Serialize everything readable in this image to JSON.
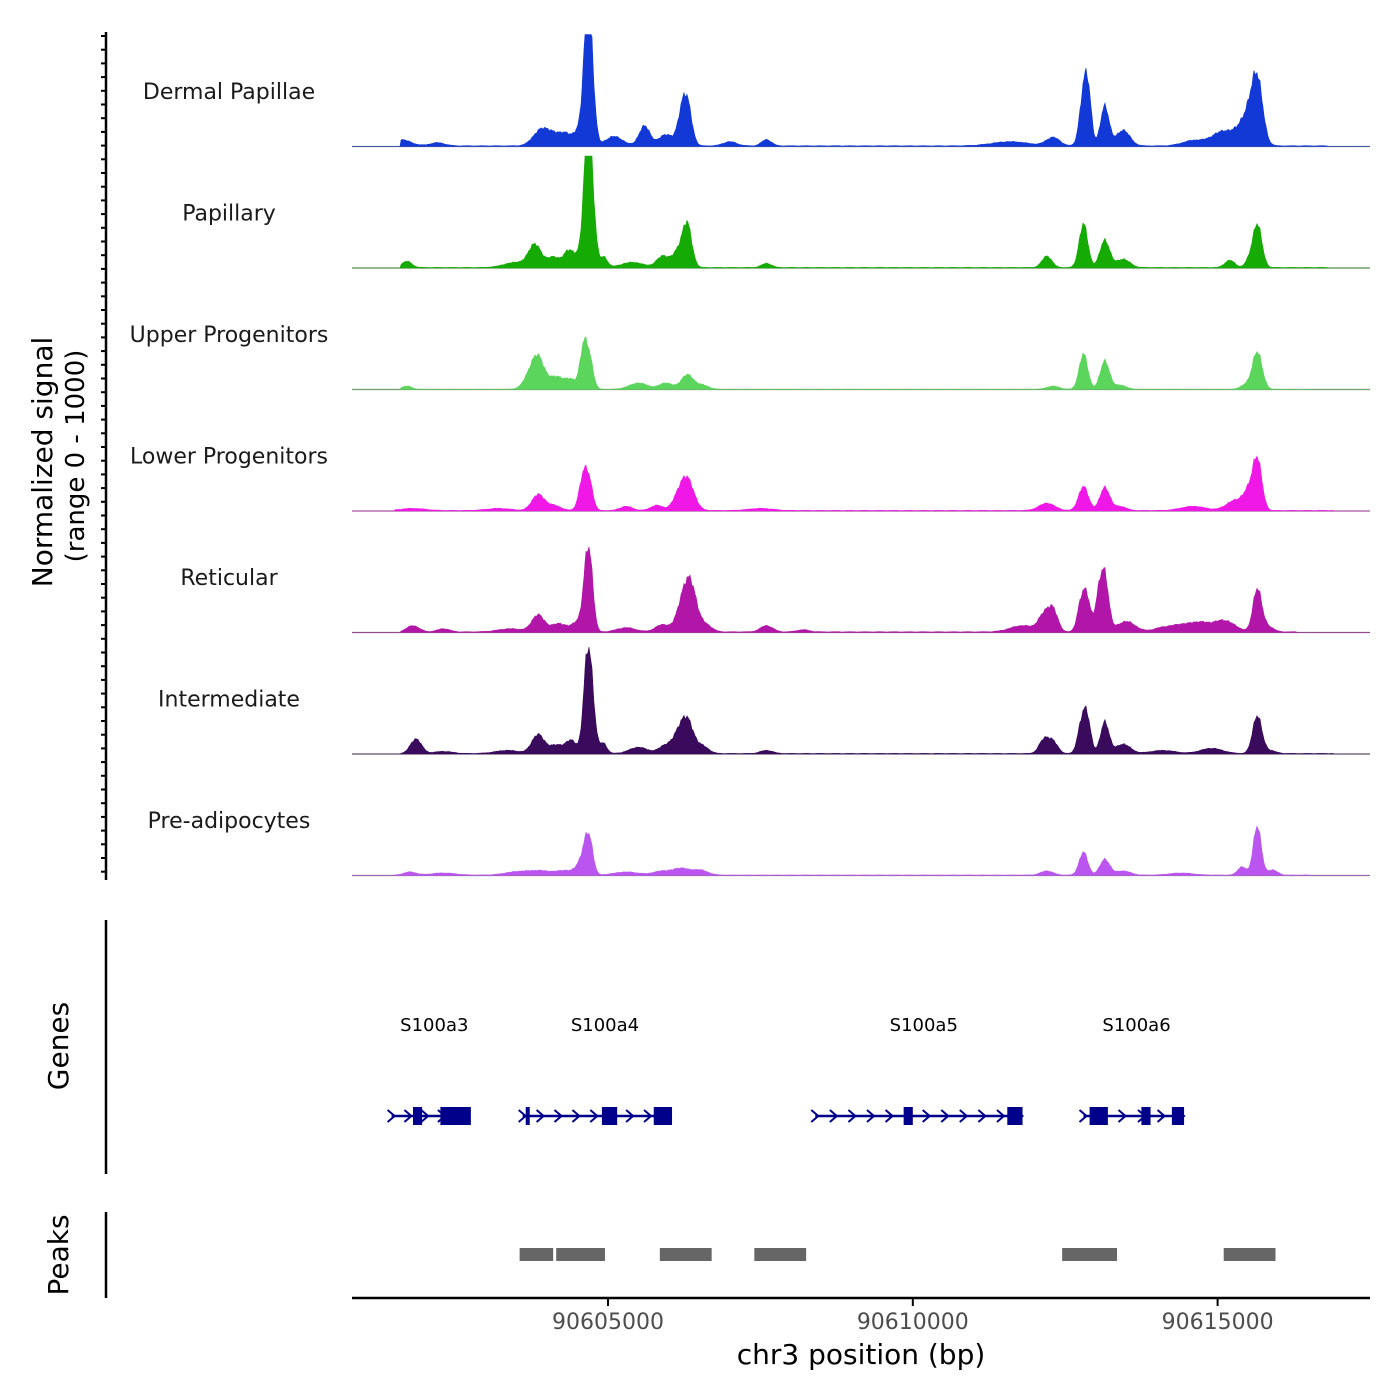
{
  "chart_data": {
    "type": "area",
    "title": "",
    "y_axis_label": "Normalized signal",
    "y_axis_sublabel": "(range 0 - 1000)",
    "ylim": [
      0,
      1000
    ],
    "xlabel": "chr3 position (bp)",
    "xlim": [
      90600800,
      90617500
    ],
    "x_ticks": [
      90605000,
      90610000,
      90615000
    ],
    "x_tick_labels": [
      "90605000",
      "90610000",
      "90615000"
    ],
    "tracks": [
      {
        "name": "Dermal Papillae",
        "color": "#1238d6",
        "peaks": [
          [
            90601600,
            60,
            160
          ],
          [
            90602200,
            30,
            120
          ],
          [
            90603900,
            150,
            130
          ],
          [
            90604100,
            80,
            110
          ],
          [
            90604300,
            110,
            100
          ],
          [
            90604550,
            180,
            90
          ],
          [
            90604650,
            930,
            55
          ],
          [
            90604720,
            720,
            60
          ],
          [
            90605100,
            90,
            140
          ],
          [
            90605600,
            190,
            90
          ],
          [
            90605950,
            110,
            110
          ],
          [
            90606300,
            390,
            75
          ],
          [
            90606200,
            230,
            70
          ],
          [
            90607000,
            40,
            110
          ],
          [
            90607600,
            60,
            80
          ],
          [
            90611600,
            40,
            300
          ],
          [
            90612300,
            80,
            110
          ],
          [
            90612800,
            480,
            65
          ],
          [
            90612880,
            400,
            55
          ],
          [
            90613150,
            380,
            70
          ],
          [
            90613450,
            150,
            110
          ],
          [
            90614600,
            50,
            180
          ],
          [
            90615100,
            140,
            190
          ],
          [
            90615500,
            280,
            140
          ],
          [
            90615650,
            540,
            90
          ]
        ],
        "base": 8,
        "extent": [
          90601600,
          90616800
        ]
      },
      {
        "name": "Papillary",
        "color": "#16aa04",
        "peaks": [
          [
            90601700,
            60,
            80
          ],
          [
            90603500,
            50,
            200
          ],
          [
            90603800,
            210,
            100
          ],
          [
            90604100,
            100,
            110
          ],
          [
            90604350,
            150,
            80
          ],
          [
            90604550,
            140,
            90
          ],
          [
            90604650,
            980,
            55
          ],
          [
            90604730,
            720,
            60
          ],
          [
            90604930,
            100,
            60
          ],
          [
            90605400,
            50,
            180
          ],
          [
            90605900,
            110,
            100
          ],
          [
            90606300,
            400,
            75
          ],
          [
            90606150,
            150,
            90
          ],
          [
            90607600,
            40,
            80
          ],
          [
            90612200,
            110,
            80
          ],
          [
            90612800,
            420,
            70
          ],
          [
            90613150,
            260,
            80
          ],
          [
            90613450,
            80,
            110
          ],
          [
            90615200,
            70,
            80
          ],
          [
            90615500,
            50,
            60
          ],
          [
            90615650,
            420,
            75
          ]
        ],
        "base": 6,
        "extent": [
          90601600,
          90616800
        ]
      },
      {
        "name": "Upper Progenitors",
        "color": "#5bd55b",
        "peaks": [
          [
            90601700,
            30,
            80
          ],
          [
            90603850,
            290,
            100
          ],
          [
            90603700,
            100,
            100
          ],
          [
            90604150,
            120,
            130
          ],
          [
            90604400,
            80,
            90
          ],
          [
            90604600,
            390,
            60
          ],
          [
            90604700,
            260,
            60
          ],
          [
            90605500,
            60,
            150
          ],
          [
            90605950,
            60,
            110
          ],
          [
            90606300,
            140,
            100
          ],
          [
            90606550,
            40,
            100
          ],
          [
            90612300,
            30,
            100
          ],
          [
            90612800,
            340,
            70
          ],
          [
            90613150,
            270,
            75
          ],
          [
            90613400,
            40,
            100
          ],
          [
            90615650,
            360,
            80
          ],
          [
            90615450,
            40,
            80
          ]
        ],
        "base": 3,
        "extent": [
          90601600,
          90616500
        ]
      },
      {
        "name": "Lower Progenitors",
        "color": "#f018e6",
        "peaks": [
          [
            90601800,
            20,
            200
          ],
          [
            90603200,
            20,
            200
          ],
          [
            90603850,
            150,
            100
          ],
          [
            90604100,
            50,
            120
          ],
          [
            90604600,
            340,
            70
          ],
          [
            90604700,
            200,
            60
          ],
          [
            90605300,
            40,
            100
          ],
          [
            90605800,
            50,
            100
          ],
          [
            90606300,
            290,
            110
          ],
          [
            90606150,
            100,
            100
          ],
          [
            90607500,
            20,
            200
          ],
          [
            90612200,
            70,
            130
          ],
          [
            90612800,
            230,
            80
          ],
          [
            90613150,
            220,
            80
          ],
          [
            90613400,
            40,
            100
          ],
          [
            90614600,
            40,
            200
          ],
          [
            90615300,
            100,
            150
          ],
          [
            90615650,
            490,
            75
          ],
          [
            90615500,
            140,
            80
          ]
        ],
        "base": 6,
        "extent": [
          90601500,
          90616900
        ]
      },
      {
        "name": "Reticular",
        "color": "#b216a8",
        "peaks": [
          [
            90601800,
            60,
            100
          ],
          [
            90602300,
            30,
            100
          ],
          [
            90603400,
            30,
            200
          ],
          [
            90603850,
            160,
            100
          ],
          [
            90604200,
            80,
            140
          ],
          [
            90604500,
            90,
            80
          ],
          [
            90604650,
            590,
            60
          ],
          [
            90604720,
            380,
            55
          ],
          [
            90605300,
            40,
            150
          ],
          [
            90605900,
            70,
            120
          ],
          [
            90606350,
            460,
            100
          ],
          [
            90606200,
            200,
            90
          ],
          [
            90606600,
            70,
            100
          ],
          [
            90607600,
            60,
            100
          ],
          [
            90608200,
            20,
            100
          ],
          [
            90611800,
            60,
            200
          ],
          [
            90612150,
            150,
            90
          ],
          [
            90612300,
            200,
            80
          ],
          [
            90612850,
            330,
            65
          ],
          [
            90612750,
            220,
            60
          ],
          [
            90613150,
            500,
            65
          ],
          [
            90613050,
            300,
            60
          ],
          [
            90613500,
            100,
            150
          ],
          [
            90614100,
            40,
            150
          ],
          [
            90614400,
            60,
            150
          ],
          [
            90614700,
            80,
            150
          ],
          [
            90615100,
            110,
            180
          ],
          [
            90615650,
            400,
            70
          ],
          [
            90615800,
            60,
            100
          ]
        ],
        "base": 8,
        "extent": [
          90601600,
          90616300
        ]
      },
      {
        "name": "Intermediate",
        "color": "#3a0a5c",
        "peaks": [
          [
            90601850,
            140,
            90
          ],
          [
            90602300,
            20,
            150
          ],
          [
            90603350,
            30,
            200
          ],
          [
            90603850,
            180,
            100
          ],
          [
            90604150,
            80,
            120
          ],
          [
            90604400,
            120,
            90
          ],
          [
            90604650,
            750,
            60
          ],
          [
            90604730,
            510,
            60
          ],
          [
            90604920,
            100,
            60
          ],
          [
            90605500,
            60,
            150
          ],
          [
            90605950,
            80,
            110
          ],
          [
            90606300,
            310,
            100
          ],
          [
            90606150,
            140,
            90
          ],
          [
            90606550,
            70,
            100
          ],
          [
            90607600,
            30,
            100
          ],
          [
            90612150,
            130,
            80
          ],
          [
            90612300,
            110,
            80
          ],
          [
            90612850,
            370,
            65
          ],
          [
            90612750,
            200,
            60
          ],
          [
            90613150,
            300,
            70
          ],
          [
            90613450,
            90,
            120
          ],
          [
            90614100,
            30,
            200
          ],
          [
            90614900,
            50,
            180
          ],
          [
            90615650,
            360,
            75
          ],
          [
            90615850,
            30,
            100
          ]
        ],
        "base": 6,
        "extent": [
          90601600,
          90616900
        ]
      },
      {
        "name": "Pre-adipocytes",
        "color": "#bb55f0",
        "peaks": [
          [
            90601750,
            30,
            100
          ],
          [
            90602300,
            20,
            200
          ],
          [
            90603500,
            30,
            200
          ],
          [
            90603900,
            40,
            200
          ],
          [
            90604300,
            40,
            130
          ],
          [
            90604550,
            110,
            80
          ],
          [
            90604650,
            270,
            60
          ],
          [
            90604720,
            180,
            55
          ],
          [
            90605300,
            30,
            200
          ],
          [
            90605900,
            40,
            150
          ],
          [
            90606200,
            60,
            120
          ],
          [
            90606500,
            50,
            130
          ],
          [
            90612200,
            40,
            100
          ],
          [
            90612800,
            220,
            70
          ],
          [
            90613150,
            150,
            80
          ],
          [
            90613450,
            40,
            120
          ],
          [
            90614400,
            20,
            200
          ],
          [
            90615400,
            80,
            70
          ],
          [
            90615650,
            470,
            65
          ],
          [
            90615900,
            50,
            80
          ]
        ],
        "base": 5,
        "extent": [
          90601500,
          90616500
        ]
      }
    ],
    "genes_label": "Genes",
    "genes": [
      {
        "name": "S100a3",
        "start": 90601450,
        "end": 90602550,
        "label_x": 90602150,
        "exons": [
          [
            90601800,
            90601950
          ],
          [
            90602250,
            90602750
          ]
        ]
      },
      {
        "name": "S100a4",
        "start": 90603600,
        "end": 90605950,
        "label_x": 90604950,
        "exons": [
          [
            90603650,
            90603700
          ],
          [
            90604900,
            90605150
          ],
          [
            90605750,
            90606050
          ]
        ]
      },
      {
        "name": "S100a5",
        "start": 90608400,
        "end": 90611750,
        "label_x": 90610180,
        "exons": [
          [
            90609850,
            90610000
          ],
          [
            90611550,
            90611800
          ]
        ]
      },
      {
        "name": "S100a6",
        "start": 90612800,
        "end": 90614400,
        "label_x": 90613670,
        "exons": [
          [
            90612900,
            90613200
          ],
          [
            90613750,
            90613900
          ],
          [
            90614250,
            90614450
          ]
        ]
      }
    ],
    "peaks_label": "Peaks",
    "peak_regions": [
      [
        90603550,
        90604100
      ],
      [
        90604150,
        90604950
      ],
      [
        90605850,
        90606700
      ],
      [
        90607400,
        90608250
      ],
      [
        90612450,
        90613350
      ],
      [
        90615100,
        90615950
      ]
    ]
  }
}
